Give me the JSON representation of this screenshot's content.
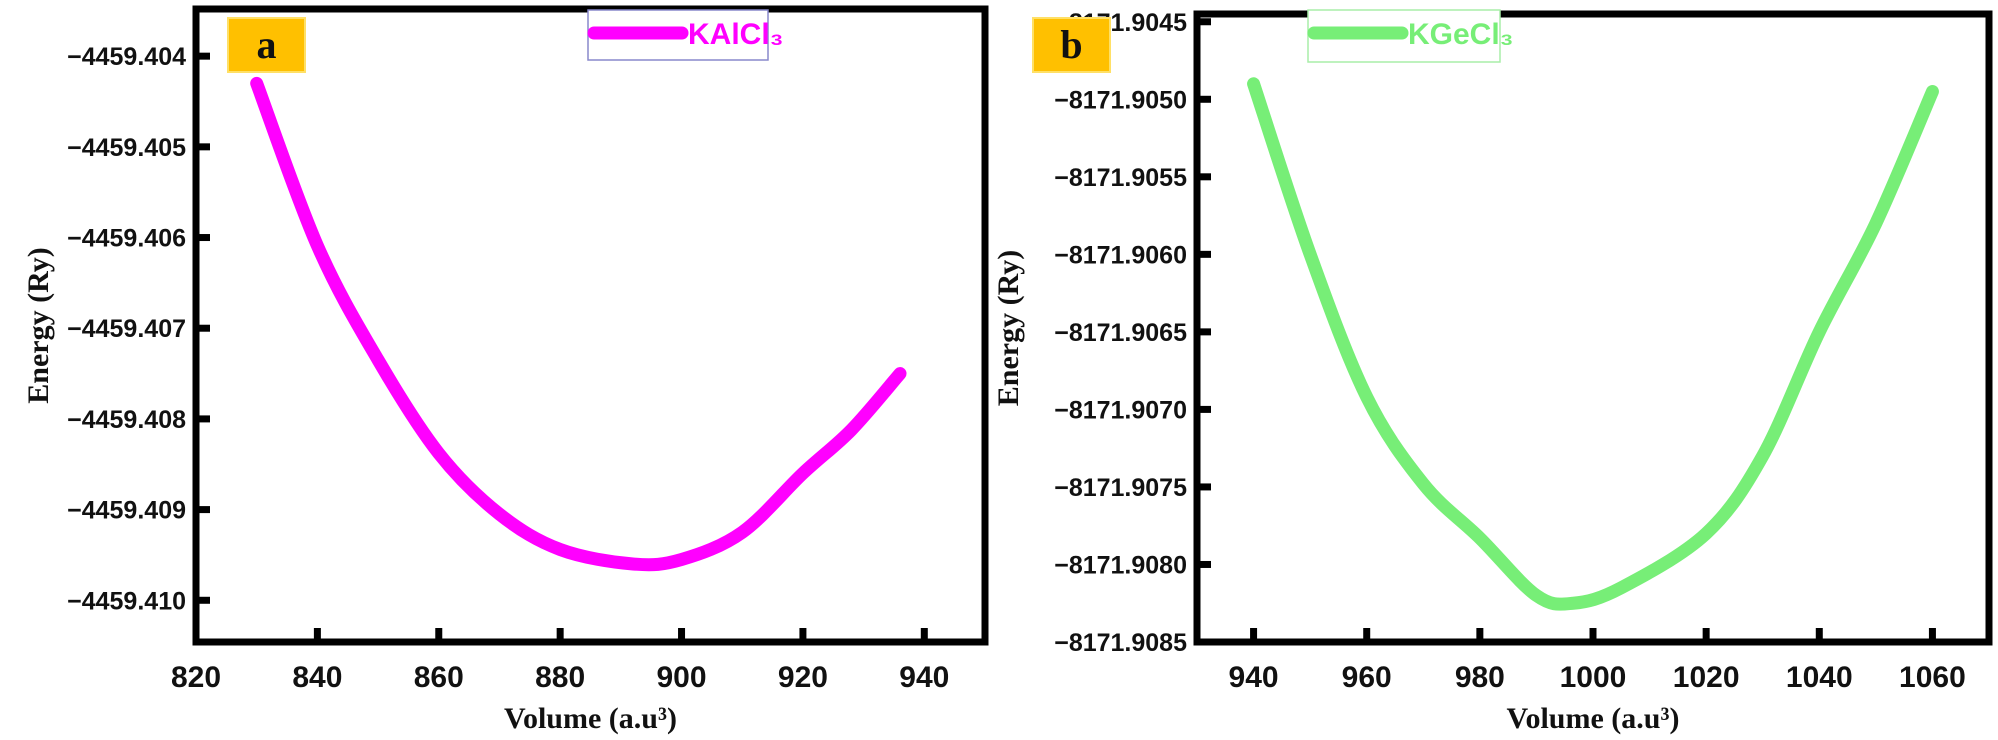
{
  "chart_data": [
    {
      "type": "line",
      "panel_label": "a",
      "panel_label_bg": "#FFC000",
      "xlabel": "Volume (a.u³)",
      "ylabel": "Energy (Ry)",
      "xlim": [
        820,
        950
      ],
      "ylim": [
        -4459.41046,
        -4459.40348
      ],
      "xticks": [
        820,
        840,
        860,
        880,
        900,
        920,
        940
      ],
      "yticks": [
        "-4459.404",
        "-4459.405",
        "-4459.406",
        "-4459.407",
        "-4459.408",
        "-4459.409",
        "-4459.410"
      ],
      "grid": false,
      "legend_position": "top-right",
      "series": [
        {
          "name": "KAlCl₃",
          "color": "#FF00FF",
          "x": [
            830,
            840,
            850,
            860,
            870,
            880,
            892,
            900,
            910,
            920,
            928,
            936
          ],
          "y": [
            -4459.4043,
            -4459.40609,
            -4459.40735,
            -4459.40838,
            -4459.40905,
            -4459.40944,
            -4459.4096,
            -4459.40955,
            -4459.40925,
            -4459.4086,
            -4459.40812,
            -4459.4075
          ]
        }
      ]
    },
    {
      "type": "line",
      "panel_label": "b",
      "panel_label_bg": "#FFC000",
      "xlabel": "Volume (a.u³)",
      "ylabel": "Energy (Ry)",
      "xlim": [
        930,
        1070
      ],
      "ylim": [
        -8171.9085,
        -8171.90445
      ],
      "xticks": [
        940,
        960,
        980,
        1000,
        1020,
        1040,
        1060
      ],
      "yticks": [
        "-8171.9045",
        "-8171.9050",
        "-8171.9055",
        "-8171.9060",
        "-8171.9065",
        "-8171.9070",
        "-8171.9075",
        "-8171.9080",
        "-8171.9085"
      ],
      "grid": false,
      "legend_position": "top-right",
      "series": [
        {
          "name": "KGeCl₃",
          "color": "#77EE77",
          "x": [
            940,
            950,
            960,
            970,
            980,
            990,
            996.5,
            1005,
            1020,
            1030,
            1040,
            1050,
            1060
          ],
          "y": [
            -8171.9049,
            -8171.906,
            -8171.90692,
            -8171.90748,
            -8171.90783,
            -8171.9082,
            -8171.90825,
            -8171.90815,
            -8171.9078,
            -8171.9073,
            -8171.9065,
            -8171.9058,
            -8171.90495
          ]
        }
      ]
    }
  ]
}
